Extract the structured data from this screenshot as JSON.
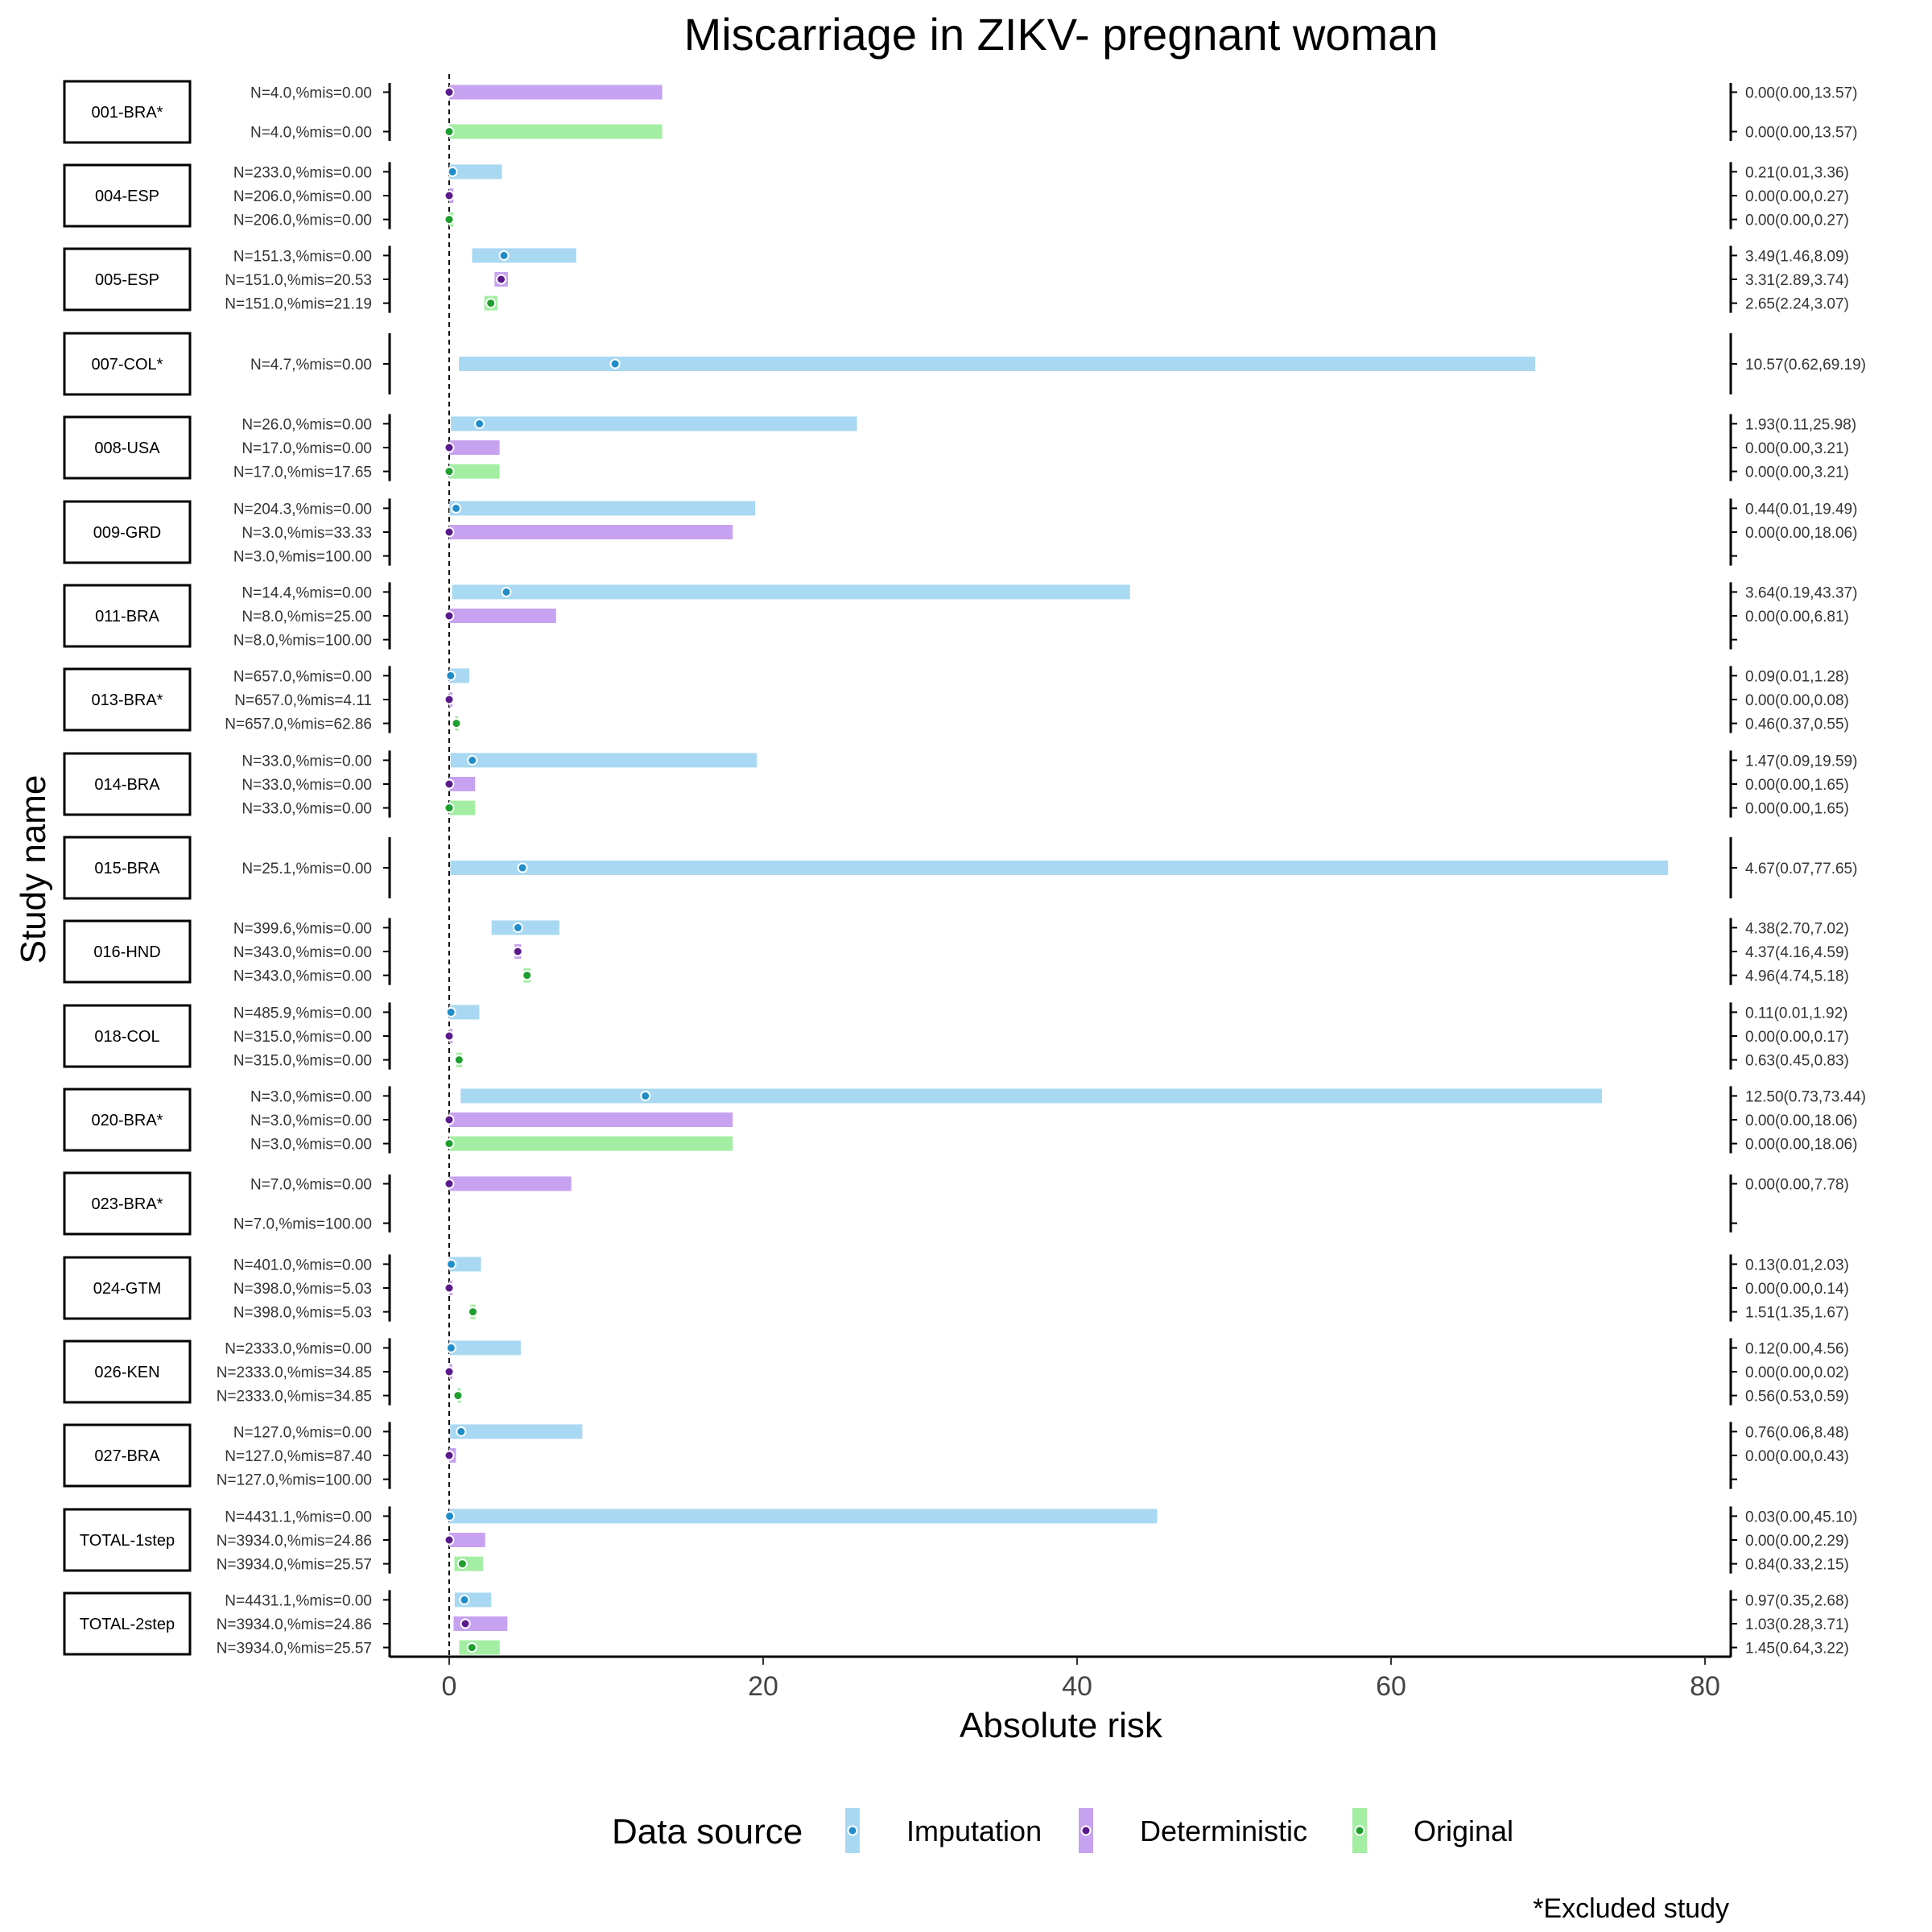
{
  "chart_data": {
    "type": "forest",
    "title": "Miscarriage in ZIKV- pregnant woman",
    "xlabel": "Absolute risk",
    "ylabel": "Study name",
    "xlim": [
      0,
      80
    ],
    "xticks": [
      0,
      20,
      40,
      60,
      80
    ],
    "reference_line": 0,
    "legend": {
      "title": "Data source",
      "position": "bottom",
      "items": [
        {
          "name": "Imputation",
          "bar_color": "#a9d8f2",
          "dot_color": "#1f8dc9"
        },
        {
          "name": "Deterministic",
          "bar_color": "#c6a2f0",
          "dot_color": "#5a1a8c"
        },
        {
          "name": "Original",
          "bar_color": "#a3eea3",
          "dot_color": "#1e9e2e"
        }
      ]
    },
    "footnote": "*Excluded study",
    "studies": [
      {
        "name": "001-BRA*",
        "rows": [
          {
            "source": "Deterministic",
            "label": "N=4.0,%mis=0.00",
            "est": 0.0,
            "lo": 0.0,
            "hi": 13.57,
            "ci_text": "0.00(0.00,13.57)"
          },
          {
            "source": "Original",
            "label": "N=4.0,%mis=0.00",
            "est": 0.0,
            "lo": 0.0,
            "hi": 13.57,
            "ci_text": "0.00(0.00,13.57)"
          }
        ]
      },
      {
        "name": "004-ESP",
        "rows": [
          {
            "source": "Imputation",
            "label": "N=233.0,%mis=0.00",
            "est": 0.21,
            "lo": 0.01,
            "hi": 3.36,
            "ci_text": "0.21(0.01,3.36)"
          },
          {
            "source": "Deterministic",
            "label": "N=206.0,%mis=0.00",
            "est": 0.0,
            "lo": 0.0,
            "hi": 0.27,
            "ci_text": "0.00(0.00,0.27)"
          },
          {
            "source": "Original",
            "label": "N=206.0,%mis=0.00",
            "est": 0.0,
            "lo": 0.0,
            "hi": 0.27,
            "ci_text": "0.00(0.00,0.27)"
          }
        ]
      },
      {
        "name": "005-ESP",
        "rows": [
          {
            "source": "Imputation",
            "label": "N=151.3,%mis=0.00",
            "est": 3.49,
            "lo": 1.46,
            "hi": 8.09,
            "ci_text": "3.49(1.46,8.09)"
          },
          {
            "source": "Deterministic",
            "label": "N=151.0,%mis=20.53",
            "est": 3.31,
            "lo": 2.89,
            "hi": 3.74,
            "ci_text": "3.31(2.89,3.74)"
          },
          {
            "source": "Original",
            "label": "N=151.0,%mis=21.19",
            "est": 2.65,
            "lo": 2.24,
            "hi": 3.07,
            "ci_text": "2.65(2.24,3.07)"
          }
        ]
      },
      {
        "name": "007-COL*",
        "rows": [
          {
            "source": "Imputation",
            "label": "N=4.7,%mis=0.00",
            "est": 10.57,
            "lo": 0.62,
            "hi": 69.19,
            "ci_text": "10.57(0.62,69.19)"
          }
        ]
      },
      {
        "name": "008-USA",
        "rows": [
          {
            "source": "Imputation",
            "label": "N=26.0,%mis=0.00",
            "est": 1.93,
            "lo": 0.11,
            "hi": 25.98,
            "ci_text": "1.93(0.11,25.98)"
          },
          {
            "source": "Deterministic",
            "label": "N=17.0,%mis=0.00",
            "est": 0.0,
            "lo": 0.0,
            "hi": 3.21,
            "ci_text": "0.00(0.00,3.21)"
          },
          {
            "source": "Original",
            "label": "N=17.0,%mis=17.65",
            "est": 0.0,
            "lo": 0.0,
            "hi": 3.21,
            "ci_text": "0.00(0.00,3.21)"
          }
        ]
      },
      {
        "name": "009-GRD",
        "rows": [
          {
            "source": "Imputation",
            "label": "N=204.3,%mis=0.00",
            "est": 0.44,
            "lo": 0.01,
            "hi": 19.49,
            "ci_text": "0.44(0.01,19.49)"
          },
          {
            "source": "Deterministic",
            "label": "N=3.0,%mis=33.33",
            "est": 0.0,
            "lo": 0.0,
            "hi": 18.06,
            "ci_text": "0.00(0.00,18.06)"
          },
          {
            "source": "Original",
            "label": "N=3.0,%mis=100.00",
            "est": null,
            "lo": null,
            "hi": null,
            "ci_text": ""
          }
        ]
      },
      {
        "name": "011-BRA",
        "rows": [
          {
            "source": "Imputation",
            "label": "N=14.4,%mis=0.00",
            "est": 3.64,
            "lo": 0.19,
            "hi": 43.37,
            "ci_text": "3.64(0.19,43.37)"
          },
          {
            "source": "Deterministic",
            "label": "N=8.0,%mis=25.00",
            "est": 0.0,
            "lo": 0.0,
            "hi": 6.81,
            "ci_text": "0.00(0.00,6.81)"
          },
          {
            "source": "Original",
            "label": "N=8.0,%mis=100.00",
            "est": null,
            "lo": null,
            "hi": null,
            "ci_text": ""
          }
        ]
      },
      {
        "name": "013-BRA*",
        "rows": [
          {
            "source": "Imputation",
            "label": "N=657.0,%mis=0.00",
            "est": 0.09,
            "lo": 0.01,
            "hi": 1.28,
            "ci_text": "0.09(0.01,1.28)"
          },
          {
            "source": "Deterministic",
            "label": "N=657.0,%mis=4.11",
            "est": 0.0,
            "lo": 0.0,
            "hi": 0.08,
            "ci_text": "0.00(0.00,0.08)"
          },
          {
            "source": "Original",
            "label": "N=657.0,%mis=62.86",
            "est": 0.46,
            "lo": 0.37,
            "hi": 0.55,
            "ci_text": "0.46(0.37,0.55)"
          }
        ]
      },
      {
        "name": "014-BRA",
        "rows": [
          {
            "source": "Imputation",
            "label": "N=33.0,%mis=0.00",
            "est": 1.47,
            "lo": 0.09,
            "hi": 19.59,
            "ci_text": "1.47(0.09,19.59)"
          },
          {
            "source": "Deterministic",
            "label": "N=33.0,%mis=0.00",
            "est": 0.0,
            "lo": 0.0,
            "hi": 1.65,
            "ci_text": "0.00(0.00,1.65)"
          },
          {
            "source": "Original",
            "label": "N=33.0,%mis=0.00",
            "est": 0.0,
            "lo": 0.0,
            "hi": 1.65,
            "ci_text": "0.00(0.00,1.65)"
          }
        ]
      },
      {
        "name": "015-BRA",
        "rows": [
          {
            "source": "Imputation",
            "label": "N=25.1,%mis=0.00",
            "est": 4.67,
            "lo": 0.07,
            "hi": 77.65,
            "ci_text": "4.67(0.07,77.65)"
          }
        ]
      },
      {
        "name": "016-HND",
        "rows": [
          {
            "source": "Imputation",
            "label": "N=399.6,%mis=0.00",
            "est": 4.38,
            "lo": 2.7,
            "hi": 7.02,
            "ci_text": "4.38(2.70,7.02)"
          },
          {
            "source": "Deterministic",
            "label": "N=343.0,%mis=0.00",
            "est": 4.37,
            "lo": 4.16,
            "hi": 4.59,
            "ci_text": "4.37(4.16,4.59)"
          },
          {
            "source": "Original",
            "label": "N=343.0,%mis=0.00",
            "est": 4.96,
            "lo": 4.74,
            "hi": 5.18,
            "ci_text": "4.96(4.74,5.18)"
          }
        ]
      },
      {
        "name": "018-COL",
        "rows": [
          {
            "source": "Imputation",
            "label": "N=485.9,%mis=0.00",
            "est": 0.11,
            "lo": 0.01,
            "hi": 1.92,
            "ci_text": "0.11(0.01,1.92)"
          },
          {
            "source": "Deterministic",
            "label": "N=315.0,%mis=0.00",
            "est": 0.0,
            "lo": 0.0,
            "hi": 0.17,
            "ci_text": "0.00(0.00,0.17)"
          },
          {
            "source": "Original",
            "label": "N=315.0,%mis=0.00",
            "est": 0.63,
            "lo": 0.45,
            "hi": 0.83,
            "ci_text": "0.63(0.45,0.83)"
          }
        ]
      },
      {
        "name": "020-BRA*",
        "rows": [
          {
            "source": "Imputation",
            "label": "N=3.0,%mis=0.00",
            "est": 12.5,
            "lo": 0.73,
            "hi": 73.44,
            "ci_text": "12.50(0.73,73.44)"
          },
          {
            "source": "Deterministic",
            "label": "N=3.0,%mis=0.00",
            "est": 0.0,
            "lo": 0.0,
            "hi": 18.06,
            "ci_text": "0.00(0.00,18.06)"
          },
          {
            "source": "Original",
            "label": "N=3.0,%mis=0.00",
            "est": 0.0,
            "lo": 0.0,
            "hi": 18.06,
            "ci_text": "0.00(0.00,18.06)"
          }
        ]
      },
      {
        "name": "023-BRA*",
        "rows": [
          {
            "source": "Deterministic",
            "label": "N=7.0,%mis=0.00",
            "est": 0.0,
            "lo": 0.0,
            "hi": 7.78,
            "ci_text": "0.00(0.00,7.78)"
          },
          {
            "source": "Original",
            "label": "N=7.0,%mis=100.00",
            "est": null,
            "lo": null,
            "hi": null,
            "ci_text": ""
          }
        ]
      },
      {
        "name": "024-GTM",
        "rows": [
          {
            "source": "Imputation",
            "label": "N=401.0,%mis=0.00",
            "est": 0.13,
            "lo": 0.01,
            "hi": 2.03,
            "ci_text": "0.13(0.01,2.03)"
          },
          {
            "source": "Deterministic",
            "label": "N=398.0,%mis=5.03",
            "est": 0.0,
            "lo": 0.0,
            "hi": 0.14,
            "ci_text": "0.00(0.00,0.14)"
          },
          {
            "source": "Original",
            "label": "N=398.0,%mis=5.03",
            "est": 1.51,
            "lo": 1.35,
            "hi": 1.67,
            "ci_text": "1.51(1.35,1.67)"
          }
        ]
      },
      {
        "name": "026-KEN",
        "rows": [
          {
            "source": "Imputation",
            "label": "N=2333.0,%mis=0.00",
            "est": 0.12,
            "lo": 0.0,
            "hi": 4.56,
            "ci_text": "0.12(0.00,4.56)"
          },
          {
            "source": "Deterministic",
            "label": "N=2333.0,%mis=34.85",
            "est": 0.0,
            "lo": 0.0,
            "hi": 0.02,
            "ci_text": "0.00(0.00,0.02)"
          },
          {
            "source": "Original",
            "label": "N=2333.0,%mis=34.85",
            "est": 0.56,
            "lo": 0.53,
            "hi": 0.59,
            "ci_text": "0.56(0.53,0.59)"
          }
        ]
      },
      {
        "name": "027-BRA",
        "rows": [
          {
            "source": "Imputation",
            "label": "N=127.0,%mis=0.00",
            "est": 0.76,
            "lo": 0.06,
            "hi": 8.48,
            "ci_text": "0.76(0.06,8.48)"
          },
          {
            "source": "Deterministic",
            "label": "N=127.0,%mis=87.40",
            "est": 0.0,
            "lo": 0.0,
            "hi": 0.43,
            "ci_text": "0.00(0.00,0.43)"
          },
          {
            "source": "Original",
            "label": "N=127.0,%mis=100.00",
            "est": null,
            "lo": null,
            "hi": null,
            "ci_text": ""
          }
        ]
      },
      {
        "name": "TOTAL-1step",
        "rows": [
          {
            "source": "Imputation",
            "label": "N=4431.1,%mis=0.00",
            "est": 0.03,
            "lo": 0.0,
            "hi": 45.1,
            "ci_text": "0.03(0.00,45.10)"
          },
          {
            "source": "Deterministic",
            "label": "N=3934.0,%mis=24.86",
            "est": 0.0,
            "lo": 0.0,
            "hi": 2.29,
            "ci_text": "0.00(0.00,2.29)"
          },
          {
            "source": "Original",
            "label": "N=3934.0,%mis=25.57",
            "est": 0.84,
            "lo": 0.33,
            "hi": 2.15,
            "ci_text": "0.84(0.33,2.15)"
          }
        ]
      },
      {
        "name": "TOTAL-2step",
        "rows": [
          {
            "source": "Imputation",
            "label": "N=4431.1,%mis=0.00",
            "est": 0.97,
            "lo": 0.35,
            "hi": 2.68,
            "ci_text": "0.97(0.35,2.68)"
          },
          {
            "source": "Deterministic",
            "label": "N=3934.0,%mis=24.86",
            "est": 1.03,
            "lo": 0.28,
            "hi": 3.71,
            "ci_text": "1.03(0.28,3.71)"
          },
          {
            "source": "Original",
            "label": "N=3934.0,%mis=25.57",
            "est": 1.45,
            "lo": 0.64,
            "hi": 3.22,
            "ci_text": "1.45(0.64,3.22)"
          }
        ]
      }
    ]
  }
}
